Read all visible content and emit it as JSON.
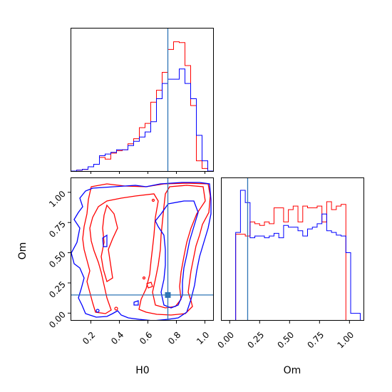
{
  "chart_data": [
    {
      "panel": "H0 marginal",
      "type": "step-histogram",
      "x": [
        0.06,
        0.1,
        0.14,
        0.18,
        0.22,
        0.26,
        0.3,
        0.34,
        0.38,
        0.42,
        0.46,
        0.5,
        0.54,
        0.58,
        0.62,
        0.66,
        0.7,
        0.74,
        0.78,
        0.82,
        0.86,
        0.9,
        0.94,
        0.98,
        1.02,
        1.06
      ],
      "xlim": [
        0.06,
        1.06
      ],
      "series": [
        {
          "color": "#ff0000",
          "counts": [
            0,
            1,
            2,
            5,
            8,
            16,
            14,
            21,
            24,
            25,
            32,
            38,
            51,
            56,
            81,
            95,
            116,
            143,
            152,
            151,
            124,
            77,
            12,
            3,
            0
          ]
        },
        {
          "color": "#0000ff",
          "counts": [
            0,
            1,
            2,
            5,
            8,
            18,
            20,
            22,
            25,
            25,
            30,
            35,
            40,
            46,
            58,
            85,
            103,
            108,
            108,
            120,
            103,
            85,
            42,
            12,
            0
          ]
        }
      ],
      "truth_line_x": 0.74,
      "xticks": [
        0.2,
        0.4,
        0.6,
        0.8,
        1.0
      ]
    },
    {
      "panel": "H0 vs Om contours",
      "type": "contour",
      "xlabel": "H0",
      "ylabel": "Om",
      "xlim": [
        0.06,
        1.06
      ],
      "ylim": [
        -0.06,
        1.12
      ],
      "xtick_labels": [
        "0.2",
        "0.4",
        "0.6",
        "0.8",
        "1.0"
      ],
      "ytick_labels": [
        "0.00",
        "0.25",
        "0.50",
        "0.75",
        "1.00"
      ],
      "truth": {
        "x": 0.74,
        "y": 0.15
      },
      "series_colors": [
        "#ff0000",
        "#0000ff"
      ]
    },
    {
      "panel": "Om marginal",
      "type": "step-histogram",
      "xlabel": "Om",
      "x": [
        -0.07,
        -0.03,
        0.01,
        0.05,
        0.09,
        0.13,
        0.17,
        0.21,
        0.25,
        0.29,
        0.33,
        0.37,
        0.41,
        0.45,
        0.49,
        0.53,
        0.57,
        0.61,
        0.65,
        0.69,
        0.73,
        0.77,
        0.81,
        0.85,
        0.89,
        0.93,
        0.97,
        1.01,
        1.05,
        1.09,
        1.12
      ],
      "xlim": [
        -0.07,
        1.12
      ],
      "series": [
        {
          "color": "#ff0000",
          "counts": [
            0,
            0,
            0,
            98,
            98,
            96,
            112,
            110,
            108,
            112,
            110,
            128,
            128,
            112,
            126,
            130,
            112,
            130,
            128,
            128,
            130,
            112,
            135,
            126,
            130,
            132,
            0,
            0,
            0,
            0
          ]
        },
        {
          "color": "#0000ff",
          "counts": [
            0,
            0,
            0,
            100,
            148,
            134,
            94,
            96,
            96,
            94,
            96,
            99,
            94,
            108,
            106,
            106,
            102,
            96,
            104,
            106,
            110,
            121,
            102,
            100,
            97,
            96,
            77,
            8,
            8,
            0
          ]
        }
      ],
      "truth_line_x": 0.15,
      "xtick_labels": [
        "0.00",
        "0.25",
        "0.50",
        "0.75",
        "1.00"
      ]
    }
  ],
  "colors": {
    "red": "#ff0000",
    "blue": "#0000ff",
    "truth": "#2e75b6"
  }
}
